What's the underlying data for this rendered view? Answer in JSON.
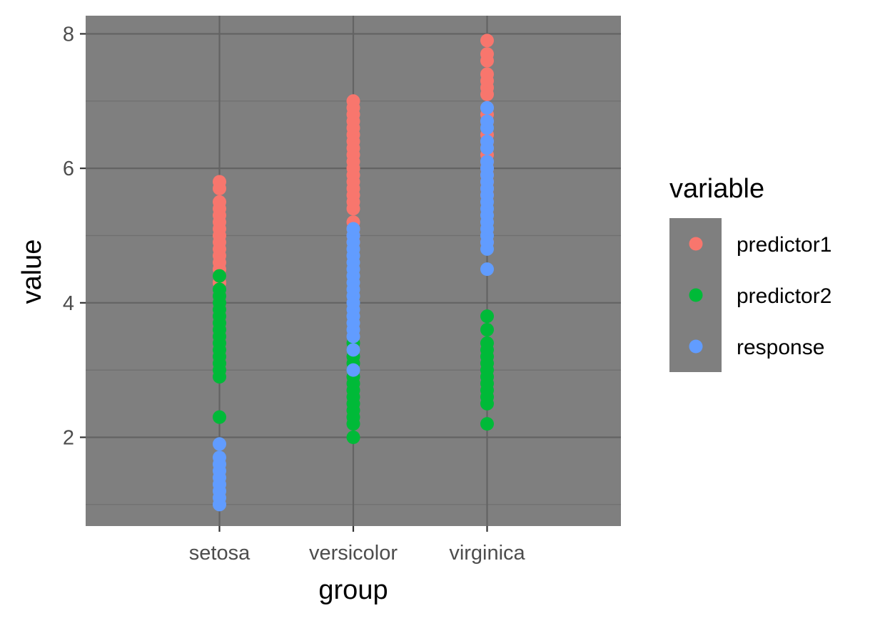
{
  "chart_data": {
    "type": "scatter",
    "title": "",
    "xlabel": "group",
    "ylabel": "value",
    "categories": [
      "setosa",
      "versicolor",
      "virginica"
    ],
    "ylim": [
      0.68,
      8.27
    ],
    "yticks": [
      2,
      4,
      6,
      8
    ],
    "ytick_labels": [
      "2",
      "4",
      "6",
      "8"
    ],
    "grid": true,
    "panel_background": "#7f7f7f",
    "legend": {
      "title": "variable",
      "placement": "right"
    },
    "series": [
      {
        "name": "predictor1",
        "color": "#F8766D",
        "points": {
          "setosa": [
            4.3,
            4.4,
            4.5,
            4.6,
            4.7,
            4.8,
            4.9,
            5.0,
            5.1,
            5.2,
            5.3,
            5.4,
            5.5,
            5.7,
            5.8
          ],
          "versicolor": [
            4.9,
            5.0,
            5.1,
            5.2,
            5.4,
            5.5,
            5.6,
            5.7,
            5.8,
            5.9,
            6.0,
            6.1,
            6.2,
            6.3,
            6.4,
            6.5,
            6.6,
            6.7,
            6.8,
            6.9,
            7.0
          ],
          "virginica": [
            4.9,
            5.6,
            5.7,
            5.8,
            5.9,
            6.0,
            6.1,
            6.2,
            6.3,
            6.4,
            6.5,
            6.7,
            6.8,
            6.9,
            7.1,
            7.2,
            7.3,
            7.4,
            7.6,
            7.7,
            7.9
          ]
        }
      },
      {
        "name": "predictor2",
        "color": "#00BA38",
        "points": {
          "setosa": [
            2.3,
            2.9,
            3.0,
            3.1,
            3.2,
            3.3,
            3.4,
            3.5,
            3.6,
            3.7,
            3.8,
            3.9,
            4.0,
            4.1,
            4.2,
            4.4
          ],
          "versicolor": [
            2.0,
            2.2,
            2.3,
            2.4,
            2.5,
            2.6,
            2.7,
            2.8,
            2.9,
            3.0,
            3.1,
            3.2,
            3.3,
            3.4
          ],
          "virginica": [
            2.2,
            2.5,
            2.6,
            2.7,
            2.8,
            2.9,
            3.0,
            3.1,
            3.2,
            3.3,
            3.4,
            3.6,
            3.8
          ]
        }
      },
      {
        "name": "response",
        "color": "#619CFF",
        "points": {
          "setosa": [
            1.0,
            1.1,
            1.2,
            1.3,
            1.4,
            1.5,
            1.6,
            1.7,
            1.9
          ],
          "versicolor": [
            3.0,
            3.3,
            3.5,
            3.6,
            3.7,
            3.8,
            3.9,
            4.0,
            4.1,
            4.2,
            4.3,
            4.4,
            4.5,
            4.6,
            4.7,
            4.8,
            4.9,
            5.0,
            5.1
          ],
          "virginica": [
            4.5,
            4.8,
            4.9,
            5.0,
            5.1,
            5.2,
            5.3,
            5.4,
            5.5,
            5.6,
            5.7,
            5.8,
            5.9,
            6.0,
            6.1,
            6.3,
            6.4,
            6.6,
            6.7,
            6.9
          ]
        }
      }
    ]
  }
}
